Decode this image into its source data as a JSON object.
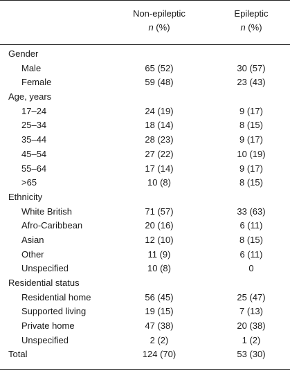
{
  "header": {
    "col1_line1": "Non-epileptic",
    "col1_line2_italic": "n",
    "col1_line2_rest": " (%)",
    "col2_line1": "Epileptic",
    "col2_line2_italic": "n",
    "col2_line2_rest": " (%)"
  },
  "rows": [
    {
      "label": "Gender",
      "sub": false,
      "v1": "",
      "v2": ""
    },
    {
      "label": "Male",
      "sub": true,
      "v1": "65 (52)",
      "v2": "30 (57)"
    },
    {
      "label": "Female",
      "sub": true,
      "v1": "59 (48)",
      "v2": "23 (43)"
    },
    {
      "label": "Age, years",
      "sub": false,
      "v1": "",
      "v2": ""
    },
    {
      "label": "17–24",
      "sub": true,
      "v1": "24 (19)",
      "v2": "9 (17)"
    },
    {
      "label": "25–34",
      "sub": true,
      "v1": "18 (14)",
      "v2": "8 (15)"
    },
    {
      "label": "35–44",
      "sub": true,
      "v1": "28 (23)",
      "v2": "9 (17)"
    },
    {
      "label": "45–54",
      "sub": true,
      "v1": "27 (22)",
      "v2": "10 (19)"
    },
    {
      "label": "55–64",
      "sub": true,
      "v1": "17 (14)",
      "v2": "9 (17)"
    },
    {
      "label": ">65",
      "sub": true,
      "v1": "10 (8)",
      "v2": "8 (15)"
    },
    {
      "label": "Ethnicity",
      "sub": false,
      "v1": "",
      "v2": ""
    },
    {
      "label": "White British",
      "sub": true,
      "v1": "71 (57)",
      "v2": "33 (63)"
    },
    {
      "label": "Afro-Caribbean",
      "sub": true,
      "v1": "20 (16)",
      "v2": "6 (11)"
    },
    {
      "label": "Asian",
      "sub": true,
      "v1": "12 (10)",
      "v2": "8 (15)"
    },
    {
      "label": "Other",
      "sub": true,
      "v1": "11 (9)",
      "v2": "6 (11)"
    },
    {
      "label": "Unspecified",
      "sub": true,
      "v1": "10 (8)",
      "v2": "0"
    },
    {
      "label": "Residential status",
      "sub": false,
      "v1": "",
      "v2": ""
    },
    {
      "label": "Residential home",
      "sub": true,
      "v1": "56 (45)",
      "v2": "25 (47)"
    },
    {
      "label": "Supported living",
      "sub": true,
      "v1": "19 (15)",
      "v2": "7 (13)"
    },
    {
      "label": "Private home",
      "sub": true,
      "v1": "47 (38)",
      "v2": "20 (38)"
    },
    {
      "label": "Unspecified",
      "sub": true,
      "v1": "2 (2)",
      "v2": "1 (2)"
    },
    {
      "label": "Total",
      "sub": false,
      "v1": "124 (70)",
      "v2": "53 (30)"
    }
  ]
}
